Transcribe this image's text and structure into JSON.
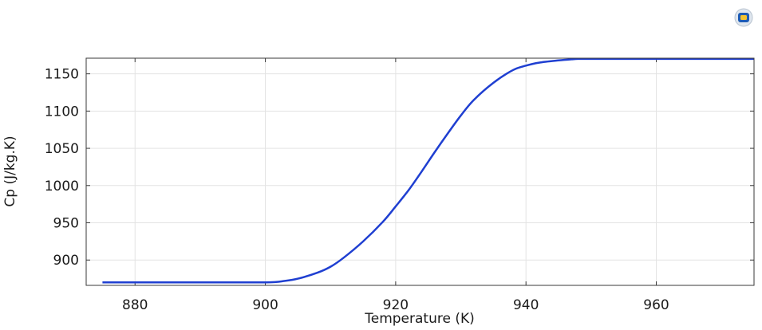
{
  "logo_icon": "comsol-logo-icon",
  "chart_data": {
    "type": "line",
    "title": "",
    "xlabel": "Temperature (K)",
    "ylabel": "Cp (J/kg.K)",
    "xlim": [
      872.5,
      975
    ],
    "ylim": [
      866,
      1171
    ],
    "x_ticks": [
      880,
      900,
      920,
      940,
      960
    ],
    "y_ticks": [
      900,
      950,
      1000,
      1050,
      1100,
      1150
    ],
    "x_tick_labels": [
      "880",
      "900",
      "920",
      "940",
      "960"
    ],
    "y_tick_labels": [
      "900",
      "950",
      "1000",
      "1050",
      "1100",
      "1150"
    ],
    "grid": true,
    "line_color": "#1f3fd1",
    "series": [
      {
        "x": [
          875,
          880,
          890,
          900,
          903,
          905,
          908,
          910,
          912,
          915,
          918,
          920,
          922,
          924,
          926,
          928,
          930,
          932,
          935,
          938,
          940,
          942,
          945,
          947,
          948,
          950,
          960,
          970,
          975
        ],
        "y": [
          870,
          870,
          870,
          870,
          872,
          875,
          883,
          891,
          903,
          925,
          951,
          972,
          994,
          1019,
          1045,
          1070,
          1094,
          1115,
          1138,
          1155,
          1161,
          1165,
          1168,
          1169.5,
          1170,
          1170,
          1170,
          1170,
          1170
        ]
      }
    ]
  }
}
